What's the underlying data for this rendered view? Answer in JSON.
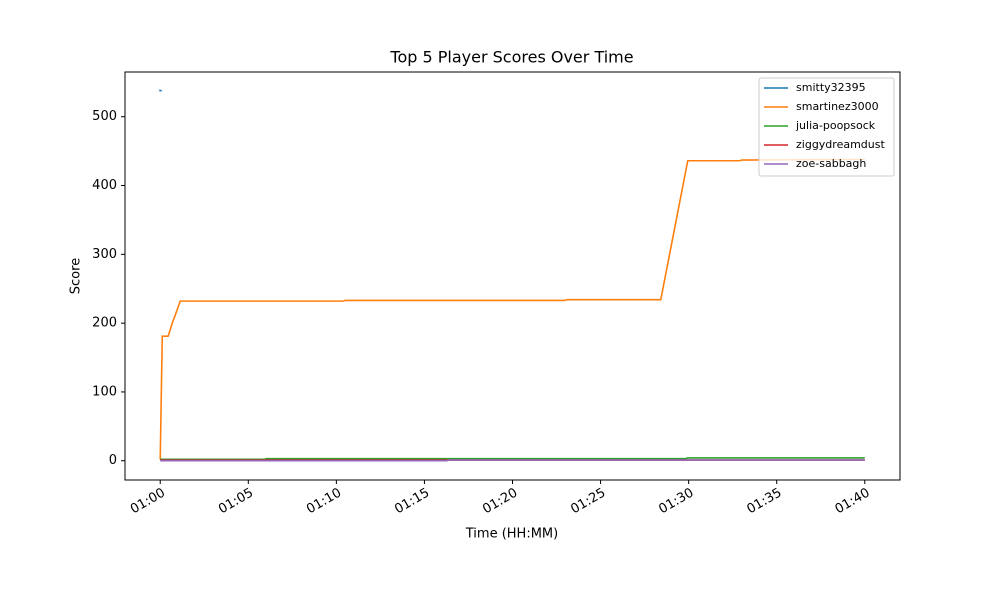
{
  "chart_data": {
    "type": "line",
    "title": "Top 5 Player Scores Over Time",
    "xlabel": "Time (HH:MM)",
    "ylabel": "Score",
    "xlim": [
      "00:58:00",
      "01:42:00"
    ],
    "ylim": [
      -28,
      565
    ],
    "xticks": [
      {
        "value": "01:00:00",
        "label": "01:00"
      },
      {
        "value": "01:05:00",
        "label": "01:05"
      },
      {
        "value": "01:10:00",
        "label": "01:10"
      },
      {
        "value": "01:15:00",
        "label": "01:15"
      },
      {
        "value": "01:20:00",
        "label": "01:20"
      },
      {
        "value": "01:25:00",
        "label": "01:25"
      },
      {
        "value": "01:30:00",
        "label": "01:30"
      },
      {
        "value": "01:35:00",
        "label": "01:35"
      },
      {
        "value": "01:40:00",
        "label": "01:40"
      }
    ],
    "yticks": [
      0,
      100,
      200,
      300,
      400,
      500
    ],
    "legend": "upper right",
    "series": [
      {
        "name": "smitty32395",
        "color": "#1f77b4",
        "x": [
          "01:00:00"
        ],
        "values": [
          538
        ]
      },
      {
        "name": "smartinez3000",
        "color": "#ff7f0e",
        "x": [
          "01:00:00",
          "01:00:07",
          "01:00:27",
          "01:00:41",
          "01:00:54",
          "01:01:08",
          "01:10:23",
          "01:10:30",
          "01:22:58",
          "01:23:05",
          "01:28:25",
          "01:29:57",
          "01:32:54",
          "01:33:01",
          "01:40:00"
        ],
        "values": [
          2,
          181,
          181,
          200,
          215,
          232,
          232,
          233,
          233,
          234,
          234,
          436,
          436,
          437,
          438
        ]
      },
      {
        "name": "julia-poopsock",
        "color": "#2ca02c",
        "x": [
          "01:00:00",
          "01:05:57",
          "01:06:00",
          "01:29:50",
          "01:29:55",
          "01:40:00"
        ],
        "values": [
          2,
          2,
          3,
          3,
          4,
          4
        ]
      },
      {
        "name": "ziggydreamdust",
        "color": "#d62728",
        "x": [
          "01:00:00",
          "01:40:00"
        ],
        "values": [
          1,
          1
        ]
      },
      {
        "name": "zoe-sabbagh",
        "color": "#9467bd",
        "x": [
          "01:00:00",
          "01:16:17",
          "01:16:20",
          "01:40:00"
        ],
        "values": [
          0,
          0,
          1,
          1
        ]
      }
    ]
  }
}
